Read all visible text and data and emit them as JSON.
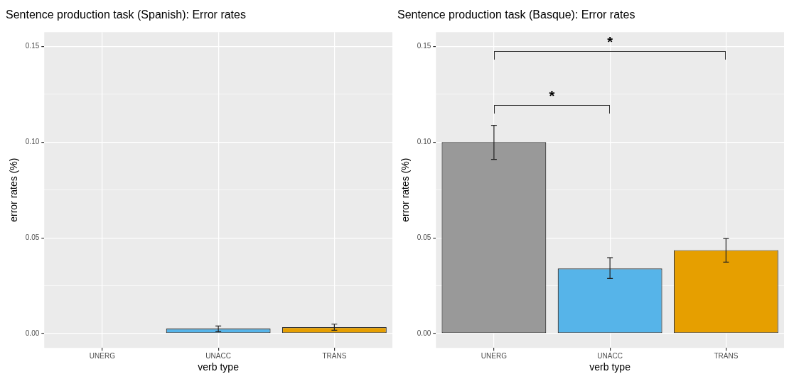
{
  "chart_data": [
    {
      "type": "bar",
      "title": "Sentence production task (Spanish): Error rates",
      "xlabel": "verb type",
      "ylabel": "error rates (%)",
      "categories": [
        "UNERG",
        "UNACC",
        "TRANS"
      ],
      "values": [
        0,
        0.0026,
        0.0033
      ],
      "errors": [
        null,
        [
          0.001,
          0.0039
        ],
        [
          0.0017,
          0.0049
        ]
      ],
      "colors": [
        "#999999",
        "#56b4e9",
        "#e69f00"
      ],
      "ylim": [
        -0.0075,
        0.1575
      ],
      "yticks": [
        {
          "value": 0,
          "label": "0.00"
        },
        {
          "value": 0.025,
          "label": null
        },
        {
          "value": 0.05,
          "label": "0.05"
        },
        {
          "value": 0.075,
          "label": null
        },
        {
          "value": 0.1,
          "label": "0.10"
        },
        {
          "value": 0.125,
          "label": null
        },
        {
          "value": 0.15,
          "label": "0.15"
        }
      ],
      "grid": true,
      "legend": false
    },
    {
      "type": "bar",
      "title": "Sentence production task (Basque): Error rates",
      "xlabel": "verb type",
      "ylabel": "error rates (%)",
      "categories": [
        "UNERG",
        "UNACC",
        "TRANS"
      ],
      "values": [
        0.1,
        0.034,
        0.0436
      ],
      "errors": [
        [
          0.091,
          0.1088
        ],
        [
          0.0288,
          0.0396
        ],
        [
          0.0373,
          0.0496
        ]
      ],
      "colors": [
        "#999999",
        "#56b4e9",
        "#e69f00"
      ],
      "ylim": [
        -0.0075,
        0.1575
      ],
      "yticks": [
        {
          "value": 0,
          "label": "0.00"
        },
        {
          "value": 0.025,
          "label": null
        },
        {
          "value": 0.05,
          "label": "0.05"
        },
        {
          "value": 0.075,
          "label": null
        },
        {
          "value": 0.1,
          "label": "0.10"
        },
        {
          "value": 0.125,
          "label": null
        },
        {
          "value": 0.15,
          "label": "0.15"
        }
      ],
      "grid": true,
      "legend": false,
      "annotations": [
        "*",
        "*"
      ]
    }
  ]
}
